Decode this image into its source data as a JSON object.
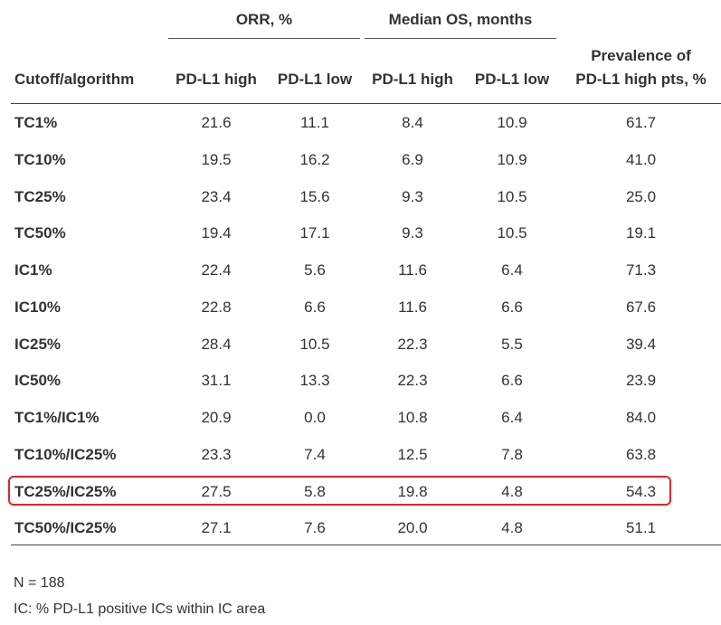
{
  "table": {
    "group_headers": {
      "orr": "ORR, %",
      "median_os": "Median OS, months"
    },
    "columns": {
      "cutoff": "Cutoff/algorithm",
      "orr_high": "PD-L1 high",
      "orr_low": "PD-L1 low",
      "os_high": "PD-L1 high",
      "os_low": "PD-L1 low",
      "prevalence_line1": "Prevalence of",
      "prevalence_line2": "PD-L1 high pts, %"
    },
    "rows": [
      {
        "label": "TC1%",
        "orr_high": "21.6",
        "orr_low": "11.1",
        "os_high": "8.4",
        "os_low": "10.9",
        "prevalence": "61.7"
      },
      {
        "label": "TC10%",
        "orr_high": "19.5",
        "orr_low": "16.2",
        "os_high": "6.9",
        "os_low": "10.9",
        "prevalence": "41.0"
      },
      {
        "label": "TC25%",
        "orr_high": "23.4",
        "orr_low": "15.6",
        "os_high": "9.3",
        "os_low": "10.5",
        "prevalence": "25.0"
      },
      {
        "label": "TC50%",
        "orr_high": "19.4",
        "orr_low": "17.1",
        "os_high": "9.3",
        "os_low": "10.5",
        "prevalence": "19.1"
      },
      {
        "label": "IC1%",
        "orr_high": "22.4",
        "orr_low": "5.6",
        "os_high": "11.6",
        "os_low": "6.4",
        "prevalence": "71.3"
      },
      {
        "label": "IC10%",
        "orr_high": "22.8",
        "orr_low": "6.6",
        "os_high": "11.6",
        "os_low": "6.6",
        "prevalence": "67.6"
      },
      {
        "label": "IC25%",
        "orr_high": "28.4",
        "orr_low": "10.5",
        "os_high": "22.3",
        "os_low": "5.5",
        "prevalence": "39.4"
      },
      {
        "label": "IC50%",
        "orr_high": "31.1",
        "orr_low": "13.3",
        "os_high": "22.3",
        "os_low": "6.6",
        "prevalence": "23.9"
      },
      {
        "label": "TC1%/IC1%",
        "orr_high": "20.9",
        "orr_low": "0.0",
        "os_high": "10.8",
        "os_low": "6.4",
        "prevalence": "84.0"
      },
      {
        "label": "TC10%/IC25%",
        "orr_high": "23.3",
        "orr_low": "7.4",
        "os_high": "12.5",
        "os_low": "7.8",
        "prevalence": "63.8"
      },
      {
        "label": "TC25%/IC25%",
        "orr_high": "27.5",
        "orr_low": "5.8",
        "os_high": "19.8",
        "os_low": "4.8",
        "prevalence": "54.3",
        "highlighted": true
      },
      {
        "label": "TC50%/IC25%",
        "orr_high": "27.1",
        "orr_low": "7.6",
        "os_high": "20.0",
        "os_low": "4.8",
        "prevalence": "51.1"
      }
    ],
    "highlight_color": "#e0242a"
  },
  "footnotes": {
    "n": "N = 188",
    "ic_definition": "IC: % PD-L1 positive ICs within IC area"
  }
}
